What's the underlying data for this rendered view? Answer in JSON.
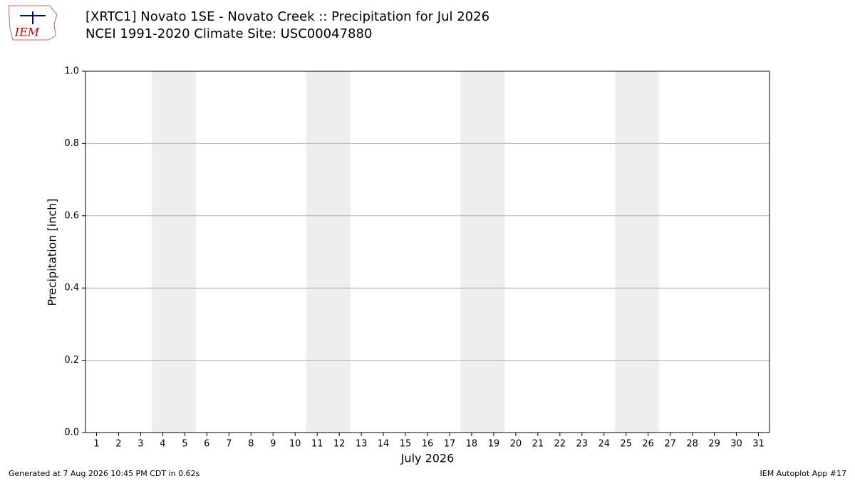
{
  "chart_data": {
    "type": "bar",
    "logo_text": "IEM",
    "title": "[XRTC1] Novato 1SE - Novato Creek :: Precipitation for Jul 2026",
    "subtitle": "NCEI 1991-2020 Climate Site: USC00047880",
    "y_label": "Precipitation [inch]",
    "x_label": "July 2026",
    "xlim": [
      0.5,
      31.5
    ],
    "xticks": [
      1,
      2,
      3,
      4,
      5,
      6,
      7,
      8,
      9,
      10,
      11,
      12,
      13,
      14,
      15,
      16,
      17,
      18,
      19,
      20,
      21,
      22,
      23,
      24,
      25,
      26,
      27,
      28,
      29,
      30,
      31
    ],
    "ylim": [
      0,
      1
    ],
    "yticks": [
      {
        "value": 0,
        "label": "0.0"
      },
      0.2,
      0.4,
      0.6,
      0.8,
      {
        "value": 1,
        "label": "1.0"
      }
    ],
    "grid": true,
    "shaded_spans": [
      [
        3.5,
        5.5
      ],
      [
        10.5,
        12.5
      ],
      [
        17.5,
        19.5
      ],
      [
        24.5,
        26.5
      ]
    ],
    "shade_color": "#eeeeee",
    "footer_left": "Generated at 7 Aug 2026 10:45 PM CDT in 0.62s",
    "footer_right": "IEM Autoplot App #17"
  }
}
